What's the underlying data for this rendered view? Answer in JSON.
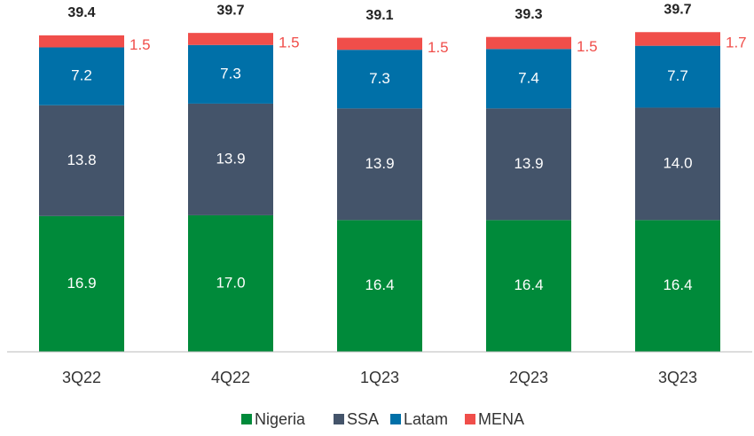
{
  "chart_data": {
    "type": "stacked_bar",
    "categories": [
      "3Q22",
      "4Q22",
      "1Q23",
      "2Q23",
      "3Q23"
    ],
    "series": [
      {
        "name": "Nigeria",
        "color": "#008a3a",
        "values": [
          16.9,
          17.0,
          16.4,
          16.4,
          16.4
        ],
        "value_labels": [
          "16.9",
          "17.0",
          "16.4",
          "16.4",
          "16.4"
        ]
      },
      {
        "name": "SSA",
        "color": "#44546a",
        "values": [
          13.8,
          13.9,
          13.9,
          13.9,
          14.0
        ],
        "value_labels": [
          "13.8",
          "13.9",
          "13.9",
          "13.9",
          "14.0"
        ]
      },
      {
        "name": "Latam",
        "color": "#0070a8",
        "values": [
          7.2,
          7.3,
          7.3,
          7.4,
          7.7
        ],
        "value_labels": [
          "7.2",
          "7.3",
          "7.3",
          "7.4",
          "7.7"
        ]
      },
      {
        "name": "MENA",
        "color": "#f04e4a",
        "values": [
          1.5,
          1.5,
          1.5,
          1.5,
          1.7
        ],
        "value_labels": [
          "1.5",
          "1.5",
          "1.5",
          "1.5",
          "1.7"
        ]
      }
    ],
    "totals": [
      39.4,
      39.7,
      39.1,
      39.3,
      39.7
    ],
    "ylim": [
      0,
      43.8
    ],
    "legend": "bottom"
  }
}
